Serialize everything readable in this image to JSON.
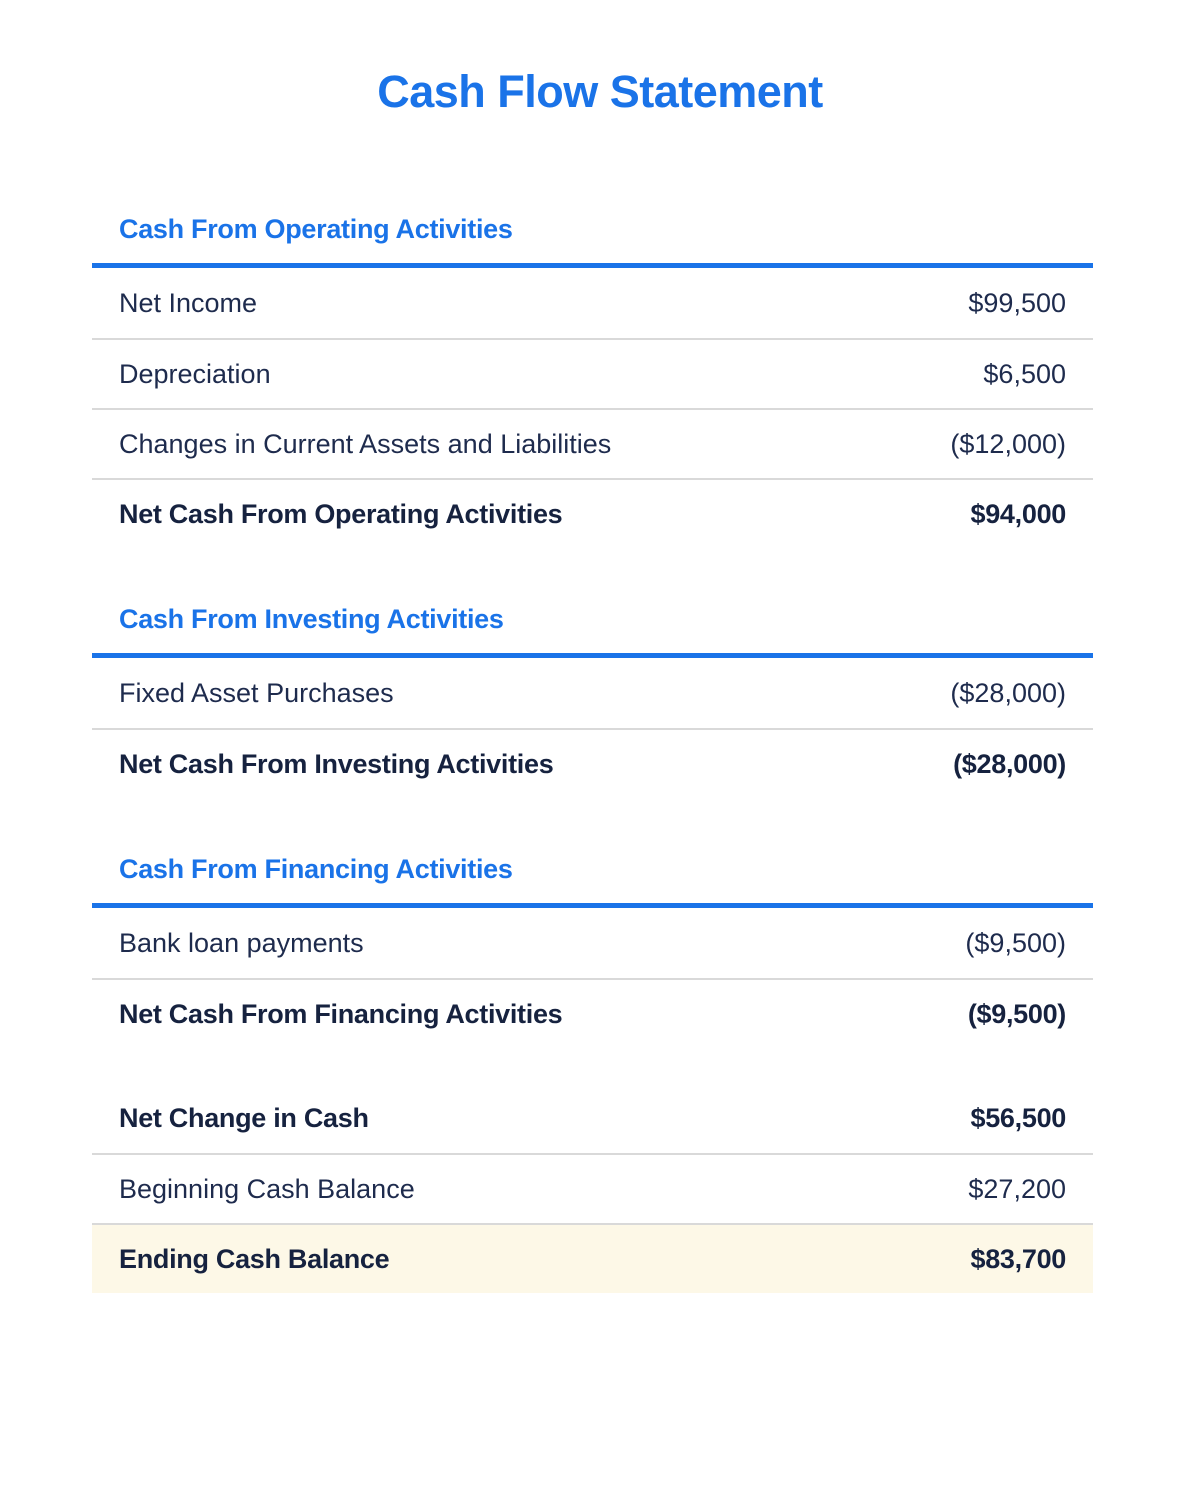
{
  "page": {
    "title": "Cash Flow Statement"
  },
  "colors": {
    "accent_blue": "#1a73e8",
    "text_navy": "#1e2b4d",
    "divider_gray": "#d9d9d9",
    "highlight_cream": "#fdf8e7"
  },
  "sections": [
    {
      "heading": "Cash From Operating Activities",
      "rows": [
        {
          "label": "Net Income",
          "value": "$99,500"
        },
        {
          "label": "Depreciation",
          "value": "$6,500"
        },
        {
          "label": "Changes in Current Assets and Liabilities",
          "value": "($12,000)"
        },
        {
          "label": "Net Cash From Operating Activities",
          "value": "$94,000"
        }
      ]
    },
    {
      "heading": "Cash From Investing Activities",
      "rows": [
        {
          "label": "Fixed Asset Purchases",
          "value": "($28,000)"
        },
        {
          "label": "Net Cash From Investing Activities",
          "value": "($28,000)"
        }
      ]
    },
    {
      "heading": "Cash From Financing Activities",
      "rows": [
        {
          "label": "Bank loan payments",
          "value": "($9,500)"
        },
        {
          "label": "Net Cash From Financing Activities",
          "value": "($9,500)"
        }
      ]
    }
  ],
  "summary": {
    "rows": [
      {
        "label": "Net Change in Cash",
        "value": "$56,500"
      },
      {
        "label": "Beginning Cash Balance",
        "value": "$27,200"
      },
      {
        "label": "Ending Cash Balance",
        "value": "$83,700"
      }
    ]
  }
}
